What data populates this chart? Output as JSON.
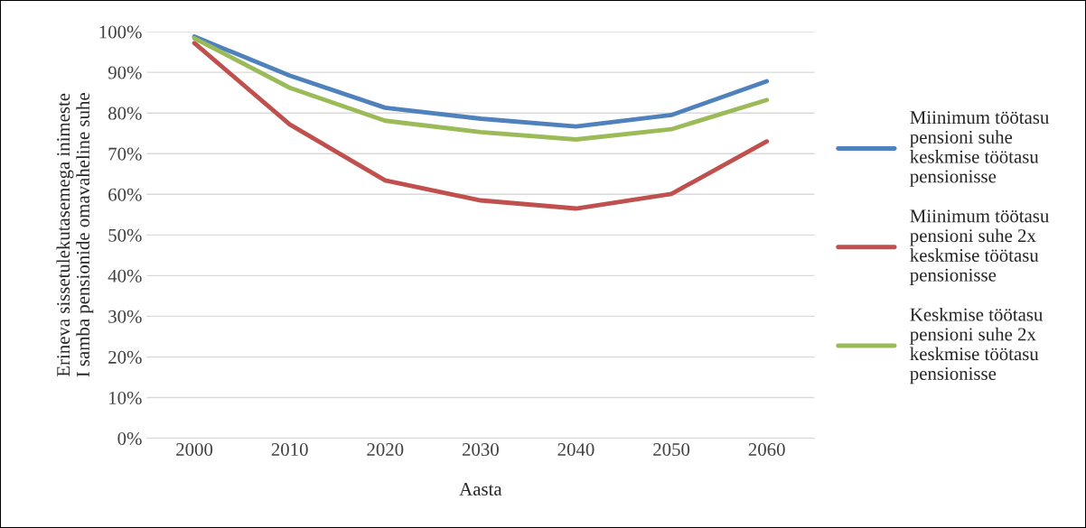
{
  "chart_data": {
    "type": "line",
    "xlabel": "Aasta",
    "ylabel": "Erineva sissetulekutasemega inimeste\nI samba pensionide omavaheline suhe",
    "categories": [
      "2000",
      "2010",
      "2020",
      "2030",
      "2040",
      "2050",
      "2060"
    ],
    "series": [
      {
        "name": "Miinimum töötasu pensioni suhe keskmise töötasu pensionisse",
        "color": "#4f81bd",
        "values": [
          98.8,
          89.2,
          81.3,
          78.6,
          76.7,
          79.5,
          87.8
        ]
      },
      {
        "name": "Miinimum töötasu pensioni suhe 2x keskmise töötasu pensionisse",
        "color": "#c0504d",
        "values": [
          97.2,
          77.2,
          63.4,
          58.5,
          56.5,
          60.1,
          73.0
        ]
      },
      {
        "name": "Keskmise töötasu pensioni suhe 2x keskmise töötasu pensionisse",
        "color": "#9bbb59",
        "values": [
          98.4,
          86.2,
          78.1,
          75.3,
          73.5,
          76.0,
          83.2
        ]
      }
    ],
    "ylim": [
      0,
      100
    ],
    "yticks": [
      {
        "value": 0,
        "label": "0%"
      },
      {
        "value": 10,
        "label": "10%"
      },
      {
        "value": 20,
        "label": "20%"
      },
      {
        "value": 30,
        "label": "30%"
      },
      {
        "value": 40,
        "label": "40%"
      },
      {
        "value": 50,
        "label": "50%"
      },
      {
        "value": 60,
        "label": "60%"
      },
      {
        "value": 70,
        "label": "70%"
      },
      {
        "value": 80,
        "label": "80%"
      },
      {
        "value": 90,
        "label": "90%"
      },
      {
        "value": 100,
        "label": "100%"
      }
    ],
    "grid": "y",
    "legend": "right",
    "marker": "none",
    "line_style": "solid"
  }
}
